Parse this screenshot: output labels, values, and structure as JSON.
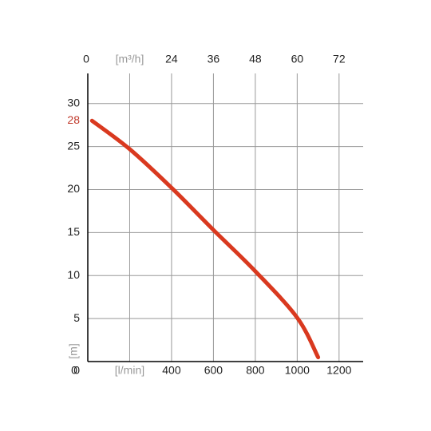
{
  "chart_data": {
    "type": "line",
    "ylabel": "[m]",
    "x": [
      20,
      200,
      400,
      600,
      800,
      1000,
      1100
    ],
    "series": [
      {
        "color": "#d9391f",
        "values": [
          28,
          24.7,
          20.2,
          15.3,
          10.5,
          5.1,
          0.5
        ]
      }
    ],
    "xlim": [
      0,
      1315
    ],
    "xticks": [
      0,
      {
        "value": 200,
        "label": "[l/min]"
      },
      400,
      600,
      800,
      1000,
      1200
    ],
    "x2lim": [
      0,
      78.9
    ],
    "x2ticks": [
      0,
      {
        "value": 12,
        "label": "[m³/h]"
      },
      24,
      36,
      48,
      60,
      72
    ],
    "ylim": [
      0,
      33.5
    ],
    "yticks": [
      0,
      5,
      10,
      15,
      20,
      25,
      30
    ],
    "annotations": [
      {
        "y": 28,
        "color": "#c0392b"
      }
    ],
    "grid": true
  }
}
